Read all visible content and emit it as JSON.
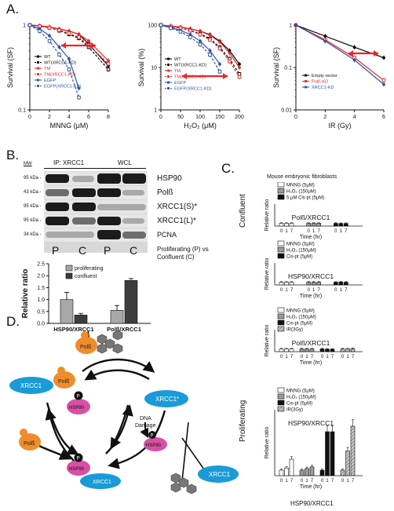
{
  "panels": {
    "A": "A.",
    "B": "B.",
    "C": "C.",
    "D": "D."
  },
  "chart_data": [
    {
      "id": "A1",
      "type": "line",
      "xlabel": "MNNG (μM)",
      "ylabel": "Survival (SF)",
      "xlim": [
        0,
        8
      ],
      "ylim_log": [
        0.1,
        1
      ],
      "xticks": [
        "0",
        "2",
        "4",
        "6",
        "8"
      ],
      "yticks": [
        "0.1",
        "1"
      ],
      "series": [
        {
          "name": "WT",
          "color": "#000000",
          "dash": "solid",
          "x": [
            0,
            1,
            2,
            3,
            4,
            5,
            6,
            8
          ],
          "y": [
            1.0,
            0.98,
            0.95,
            0.9,
            0.85,
            0.78,
            0.6,
            0.33
          ]
        },
        {
          "name": "WT(XRCC1-KD)",
          "color": "#000000",
          "dash": "dash",
          "x": [
            0,
            1,
            2,
            3,
            4,
            5,
            6,
            8
          ],
          "y": [
            1.0,
            0.97,
            0.93,
            0.86,
            0.78,
            0.7,
            0.55,
            0.3
          ]
        },
        {
          "name": "TM",
          "color": "#e8262a",
          "dash": "solid",
          "x": [
            0,
            1,
            2,
            3,
            4,
            5,
            6,
            8
          ],
          "y": [
            1.0,
            0.98,
            0.95,
            0.9,
            0.85,
            0.78,
            0.65,
            0.38
          ]
        },
        {
          "name": "TM(XRCC1-KD)",
          "color": "#e8262a",
          "dash": "dash",
          "x": [
            0,
            1,
            2,
            3,
            4,
            5,
            6,
            8
          ],
          "y": [
            1.0,
            0.97,
            0.93,
            0.87,
            0.8,
            0.72,
            0.58,
            0.35
          ]
        },
        {
          "name": "EGFP",
          "color": "#2e52a8",
          "dash": "solid",
          "x": [
            0,
            1,
            2,
            3,
            4,
            5
          ],
          "y": [
            1.0,
            0.9,
            0.75,
            0.55,
            0.4,
            0.18
          ]
        },
        {
          "name": "EGFP(XRCC1-KD)",
          "color": "#2e52a8",
          "dash": "dash",
          "x": [
            0,
            1,
            2,
            3,
            4,
            5
          ],
          "y": [
            1.0,
            0.85,
            0.65,
            0.45,
            0.3,
            0.14
          ]
        }
      ]
    },
    {
      "id": "A2",
      "type": "line",
      "xlabel": "H₂O₂ (μM)",
      "ylabel": "Survival (%)",
      "xlim": [
        0,
        200
      ],
      "ylim_log": [
        1,
        100
      ],
      "xticks": [
        "0",
        "50",
        "100",
        "150",
        "200"
      ],
      "yticks": [
        "1",
        "10",
        "100"
      ],
      "series": [
        {
          "name": "WT",
          "color": "#000000",
          "dash": "solid",
          "x": [
            0,
            25,
            50,
            75,
            100,
            125,
            150,
            175,
            200
          ],
          "y": [
            100,
            95,
            90,
            82,
            72,
            60,
            42,
            25,
            12
          ]
        },
        {
          "name": "WT(XRCC1-KD)",
          "color": "#000000",
          "dash": "dash",
          "x": [
            0,
            25,
            50,
            75,
            100,
            125,
            150,
            175,
            200
          ],
          "y": [
            100,
            92,
            85,
            75,
            62,
            48,
            30,
            16,
            7
          ]
        },
        {
          "name": "TM",
          "color": "#e8262a",
          "dash": "solid",
          "x": [
            0,
            25,
            50,
            75,
            100,
            125,
            150,
            175,
            200
          ],
          "y": [
            100,
            95,
            90,
            82,
            72,
            58,
            40,
            22,
            10
          ]
        },
        {
          "name": "TM(XRCC1-KD)",
          "color": "#e8262a",
          "dash": "dash",
          "x": [
            0,
            25,
            50,
            75,
            100,
            125,
            150,
            175,
            200
          ],
          "y": [
            100,
            92,
            85,
            74,
            60,
            45,
            28,
            14,
            6
          ]
        },
        {
          "name": "EGFP",
          "color": "#2e52a8",
          "dash": "solid",
          "x": [
            0,
            25,
            50,
            75,
            100,
            125,
            150
          ],
          "y": [
            100,
            88,
            75,
            60,
            42,
            25,
            12
          ]
        },
        {
          "name": "EGFP(XRCC1-KD)",
          "color": "#2e52a8",
          "dash": "dash",
          "x": [
            0,
            25,
            50,
            75,
            100,
            125,
            150
          ],
          "y": [
            100,
            85,
            70,
            52,
            35,
            20,
            8
          ]
        }
      ]
    },
    {
      "id": "A3",
      "type": "line",
      "xlabel": "IR (Gy)",
      "ylabel": "Survival (SF)",
      "xlim": [
        0,
        6
      ],
      "ylim_log": [
        0.01,
        1
      ],
      "xticks": [
        "0",
        "2",
        "4",
        "6"
      ],
      "yticks": [
        "0.01",
        "0.1",
        "1"
      ],
      "series": [
        {
          "name": "Empty vector",
          "color": "#000000",
          "dash": "solid",
          "x": [
            0,
            2,
            4,
            6
          ],
          "y": [
            1.0,
            0.55,
            0.3,
            0.17
          ]
        },
        {
          "name": "Polß-KD",
          "color": "#e8262a",
          "dash": "solid",
          "x": [
            0,
            2,
            4,
            6
          ],
          "y": [
            1.0,
            0.45,
            0.17,
            0.05
          ]
        },
        {
          "name": "XRCC1-KD",
          "color": "#2e52a8",
          "dash": "solid",
          "x": [
            0,
            2,
            4,
            6
          ],
          "y": [
            1.0,
            0.42,
            0.15,
            0.04
          ]
        }
      ]
    },
    {
      "id": "B-bar",
      "type": "bar",
      "categories": [
        "HSP90/XRCC1",
        "Polß/XRCC1"
      ],
      "series": [
        {
          "name": "proliferating",
          "color": "#a8a8a8",
          "values": [
            1.0,
            0.55
          ],
          "err": [
            0.3,
            0.2
          ]
        },
        {
          "name": "confluent",
          "color": "#3d3d3d",
          "values": [
            0.35,
            1.8
          ],
          "err": [
            0.07,
            0.08
          ]
        }
      ],
      "ylabel": "Relative ratio",
      "ylim": [
        0,
        2.5
      ],
      "yticks": [
        "0.0",
        "0.5",
        "1.0",
        "1.5",
        "2.0",
        "2.5"
      ]
    },
    {
      "id": "C-conf-pol",
      "type": "bar",
      "title": "Polß/XRCC1",
      "groups": [
        "MNNG (5μM)",
        "H₂O₂ (150μM)",
        "5 μM Cis-pt (5μM)"
      ],
      "times": [
        "0",
        "1",
        "7"
      ],
      "values": [
        [
          1.0,
          1.0,
          1.0
        ],
        [
          1.0,
          1.0,
          1.0
        ],
        [
          1.0,
          0.95,
          0.95
        ]
      ],
      "ylabel": "Relative ratio",
      "xlabel": "Time (hr)",
      "ylim": [
        0,
        8
      ]
    },
    {
      "id": "C-conf-hsp",
      "type": "bar",
      "title": "HSP90/XRCC1",
      "groups": [
        "MNNG (5μM)",
        "H₂O₂ (150μM)",
        "Cis-pt (5μM)"
      ],
      "times": [
        "0",
        "1",
        "7"
      ],
      "values": [
        [
          1.0,
          1.0,
          1.0
        ],
        [
          1.0,
          1.0,
          1.0
        ],
        [
          1.0,
          1.05,
          1.0
        ]
      ],
      "ylabel": "Relative ratio",
      "xlabel": "Time (hr)",
      "ylim": [
        0,
        8
      ]
    },
    {
      "id": "C-prol-pol",
      "type": "bar",
      "title": "Polß/XRCC1",
      "groups": [
        "MNNG (5μM)",
        "H₂O₂ (150μM)",
        "Cis-pt (5μM)",
        "IR(3Gy)"
      ],
      "times": [
        "0",
        "1",
        "7"
      ],
      "values": [
        [
          1.0,
          1.0,
          1.0
        ],
        [
          1.0,
          1.0,
          1.0
        ],
        [
          1.0,
          0.9,
          0.9
        ],
        [
          1.0,
          1.0,
          1.1
        ]
      ],
      "ylabel": "Relative ratio",
      "xlabel": "Time (hr)",
      "ylim": [
        0,
        8
      ]
    },
    {
      "id": "C-prol-hsp",
      "type": "bar",
      "title": "HSP90/XRCC1",
      "groups": [
        "MNNG (5μM)",
        "H₂O₂ (150μM)",
        "Cis-pt (5μM)",
        "IR(3Gy)"
      ],
      "times": [
        "0",
        "1",
        "7"
      ],
      "values": [
        [
          1.0,
          1.4,
          3.0
        ],
        [
          1.0,
          1.3,
          1.6
        ],
        [
          1.0,
          8.0,
          8.0
        ],
        [
          1.0,
          4.5,
          9.0
        ]
      ],
      "ylabel": "Relative ratio",
      "xlabel": "Time (hr)",
      "ylim": [
        0,
        12
      ]
    }
  ],
  "B": {
    "ip": "IP: XRCC1",
    "wcl": "WCL",
    "mw_head": "MW",
    "mw": [
      "95 kDa -",
      "43 kDa -",
      "95 kDa -",
      "95 kDa -",
      "34 kDa -"
    ],
    "rows": [
      "HSP90",
      "Polß",
      "XRCC1(S)*",
      "XRCC1(L)*",
      "PCNA"
    ],
    "lanes": [
      "P",
      "C",
      "P",
      "C"
    ],
    "caption1": "Proliferating (P) vs",
    "caption2": "Confluent (C)",
    "legend": [
      "proliferating",
      "confluent"
    ]
  },
  "C": {
    "title": "Mouse embryonic fibroblasts",
    "confluent": "Confluent",
    "proliferating": "Proliferating",
    "bottom": "HSP90/XRCC1",
    "legend_conf_pol": [
      "MNNG (5μM)",
      "H₂O₂ (150μM)",
      "5 μM Cis-pt (5μM)"
    ],
    "legend_conf_hsp": [
      "MNNG (5μM)",
      "H₂O₂ (150μM)",
      "Cis-pt (5μM)"
    ],
    "legend_prol": [
      "MNNG (5μM)",
      "H₂O₂ (150μM)",
      "Cis-pt (5μM)",
      "IR(3Gy)"
    ]
  },
  "D": {
    "xrcc1": "XRCC1",
    "xrcc1s": "XRCC1*",
    "polb": "Polß",
    "hsp90": "HSP90",
    "p": "P",
    "dna": "DNA",
    "damage": "Damage"
  }
}
